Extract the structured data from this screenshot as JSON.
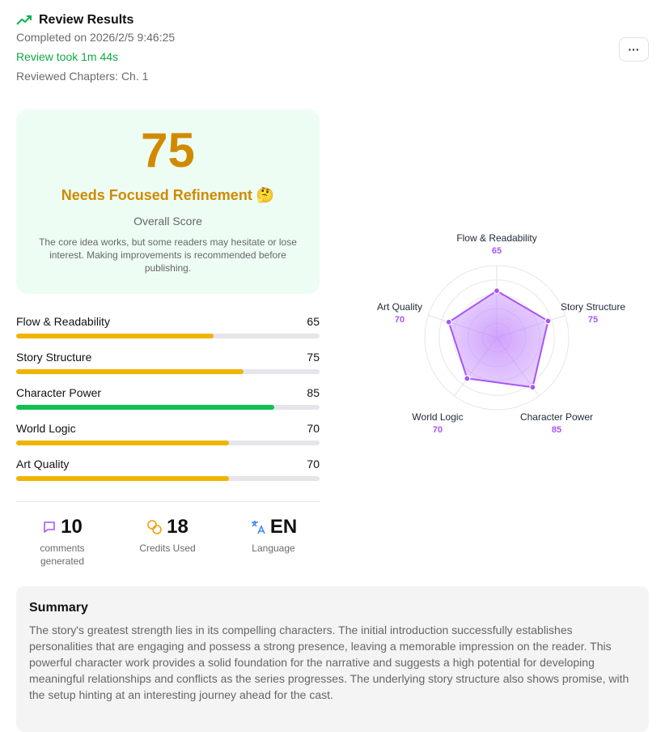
{
  "header": {
    "title": "Review Results",
    "completed": "Completed on 2026/2/5 9:46:25",
    "duration": "Review took 1m 44s",
    "chapters": "Reviewed Chapters: Ch. 1",
    "more_label": "···"
  },
  "score_card": {
    "score": "75",
    "verdict": "Needs Focused Refinement",
    "emoji": "🤔",
    "label": "Overall Score",
    "description": "The core idea works, but some readers may hesitate or lose interest. Making improvements is recommended before publishing."
  },
  "categories": [
    {
      "label": "Flow & Readability",
      "value": 65,
      "color": "#f0b400"
    },
    {
      "label": "Story Structure",
      "value": 75,
      "color": "#f0b400"
    },
    {
      "label": "Character Power",
      "value": 85,
      "color": "#10c050"
    },
    {
      "label": "World Logic",
      "value": 70,
      "color": "#f0b400"
    },
    {
      "label": "Art Quality",
      "value": 70,
      "color": "#f0b400"
    }
  ],
  "stats": {
    "comments": {
      "value": "10",
      "label": "comments generated",
      "icon": "comment-icon"
    },
    "credits": {
      "value": "18",
      "label": "Credits Used",
      "icon": "coins-icon"
    },
    "language": {
      "value": "EN",
      "label": "Language",
      "icon": "translate-icon"
    }
  },
  "summary": {
    "title": "Summary",
    "text": "The story's greatest strength lies in its compelling characters. The initial introduction successfully establishes personalities that are engaging and possess a strong presence, leaving a memorable impression on the reader. This powerful character work provides a solid foundation for the narrative and suggests a high potential for developing meaningful relationships and conflicts as the series progresses. The underlying story structure also shows promise, with the setup hinting at an interesting journey ahead for the cast."
  },
  "chart_data": {
    "type": "radar",
    "categories": [
      "Flow & Readability",
      "Story Structure",
      "Character Power",
      "World Logic",
      "Art Quality"
    ],
    "values": [
      65,
      75,
      85,
      70,
      70
    ],
    "value_labels": [
      "65",
      "75",
      "85",
      "70",
      "70"
    ],
    "range": [
      0,
      100
    ],
    "color": "#a855f7"
  }
}
